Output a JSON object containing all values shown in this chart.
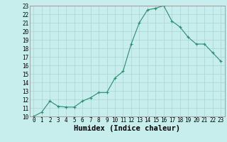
{
  "x": [
    0,
    1,
    2,
    3,
    4,
    5,
    6,
    7,
    8,
    9,
    10,
    11,
    12,
    13,
    14,
    15,
    16,
    17,
    18,
    19,
    20,
    21,
    22,
    23
  ],
  "y": [
    10.0,
    10.5,
    11.8,
    11.2,
    11.1,
    11.1,
    11.8,
    12.2,
    12.8,
    12.8,
    14.5,
    15.3,
    18.5,
    21.0,
    22.5,
    22.7,
    23.0,
    21.2,
    20.5,
    19.3,
    18.5,
    18.5,
    17.5,
    16.5
  ],
  "xlabel": "Humidex (Indice chaleur)",
  "xlim": [
    -0.5,
    23.5
  ],
  "ylim": [
    10,
    23
  ],
  "xticks": [
    0,
    1,
    2,
    3,
    4,
    5,
    6,
    7,
    8,
    9,
    10,
    11,
    12,
    13,
    14,
    15,
    16,
    17,
    18,
    19,
    20,
    21,
    22,
    23
  ],
  "yticks": [
    10,
    11,
    12,
    13,
    14,
    15,
    16,
    17,
    18,
    19,
    20,
    21,
    22,
    23
  ],
  "line_color": "#2d8b6f",
  "marker": "+",
  "bg_color": "#c8eded",
  "grid_color": "#aad4d4",
  "tick_label_fontsize": 5.5,
  "xlabel_fontsize": 7.5
}
